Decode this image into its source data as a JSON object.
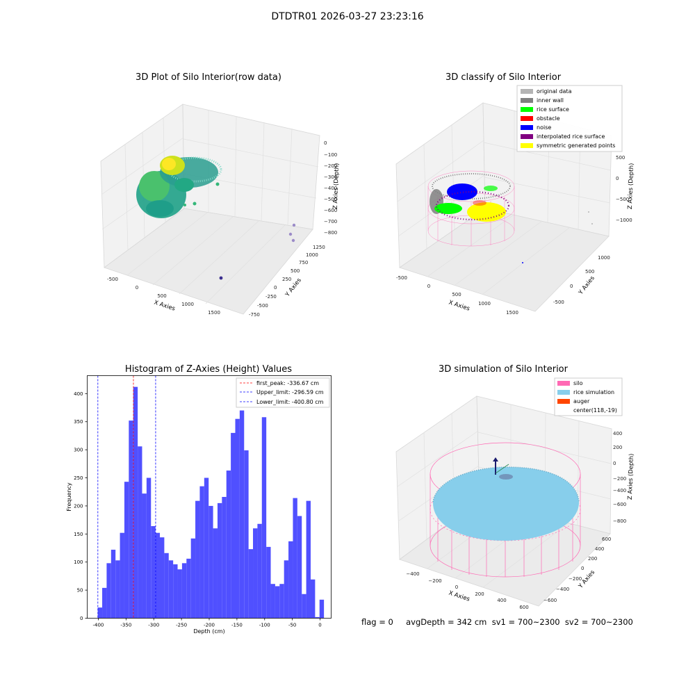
{
  "figure": {
    "title": "DTDTR01 2026-03-27 23:23:16",
    "footer": "flag = 0     avgDepth = 342 cm  sv1 = 700~2300  sv2 = 700~2300"
  },
  "colors": {
    "hist_bar": "#5050ff",
    "first_peak_line": "#ff0000",
    "limit_line": "#0000ff",
    "silo": "#ff69b4",
    "rice_sim": "#87ceeb",
    "auger": "#ff4500",
    "original": "#b4b4b4",
    "inner_wall": "#808080",
    "rice_surface": "#00ff00",
    "obstacle": "#ff0000",
    "noise": "#0000ff",
    "interp": "#800080",
    "symmetric": "#ffff00"
  },
  "panels": {
    "raw": {
      "title": "3D Plot of Silo Interior(row data)",
      "xlabel": "X Axies",
      "ylabel": "Y Axies",
      "zlabel": "Z Axies (Depth)",
      "xticks": [
        "-500",
        "0",
        "500",
        "1000",
        "1500"
      ],
      "yticks": [
        "-750",
        "-500",
        "-250",
        "0",
        "250",
        "500",
        "750",
        "1000",
        "1250"
      ],
      "zticks": [
        "0",
        "−100",
        "−200",
        "−300",
        "−400",
        "−500",
        "−600",
        "−700",
        "−800"
      ]
    },
    "classify": {
      "title": "3D classify of Silo Interior",
      "xlabel": "X Axies",
      "ylabel": "Y Axies",
      "zlabel": "Z Axies (Depth)",
      "xticks": [
        "-500",
        "0",
        "500",
        "1000",
        "1500"
      ],
      "yticks": [
        "-500",
        "0",
        "500",
        "1000"
      ],
      "zticks": [
        "500",
        "0",
        "−500",
        "−1000"
      ],
      "legend": [
        "original data",
        "inner wall",
        "rice surface",
        "obstacle",
        "noise",
        "interpolated rice surface",
        "symmetric generated points"
      ]
    },
    "simulation": {
      "title": "3D simulation of Silo Interior",
      "xlabel": "X Axies",
      "ylabel": "Y Axies",
      "zlabel": "Z Axies (Depth)",
      "xticks": [
        "−400",
        "−200",
        "0",
        "200",
        "400",
        "600"
      ],
      "yticks": [
        "−600",
        "−400",
        "−200",
        "0",
        "200",
        "400",
        "600"
      ],
      "zticks": [
        "400",
        "200",
        "0",
        "−200",
        "−400",
        "−600",
        "−800"
      ],
      "legend": [
        "silo",
        "rice simulation",
        "auger",
        "center(118,-19)"
      ]
    }
  },
  "chart_data": [
    {
      "type": "scatter",
      "title": "3D Plot of Silo Interior(row data)",
      "xlabel": "X Axies",
      "ylabel": "Y Axies",
      "zlabel": "Z Axies (Depth)",
      "xlim": [
        -600,
        1800
      ],
      "ylim": [
        -750,
        1250
      ],
      "zlim": [
        -850,
        0
      ]
    },
    {
      "type": "scatter",
      "title": "3D classify of Silo Interior",
      "xlabel": "X Axies",
      "ylabel": "Y Axies",
      "zlabel": "Z Axies (Depth)",
      "series": [
        {
          "name": "original data"
        },
        {
          "name": "inner wall"
        },
        {
          "name": "rice surface"
        },
        {
          "name": "obstacle"
        },
        {
          "name": "noise"
        },
        {
          "name": "interpolated rice surface"
        },
        {
          "name": "symmetric generated points"
        }
      ],
      "legend_position": "top-right"
    },
    {
      "type": "bar",
      "title": "Histogram of Z-Axies (Height) Values",
      "xlabel": "Depth (cm)",
      "ylabel": "Frequency",
      "xlim": [
        -420,
        20
      ],
      "ylim": [
        0,
        432
      ],
      "xticks": [
        -400,
        -350,
        -300,
        -250,
        -200,
        -150,
        -100,
        -50,
        0
      ],
      "yticks": [
        0,
        50,
        100,
        150,
        200,
        250,
        300,
        350,
        400
      ],
      "bin_start": -401,
      "bin_width": 8.0,
      "values": [
        19,
        54,
        98,
        122,
        103,
        152,
        243,
        352,
        412,
        306,
        222,
        250,
        164,
        152,
        144,
        116,
        103,
        96,
        87,
        98,
        106,
        142,
        209,
        235,
        250,
        200,
        160,
        205,
        216,
        263,
        330,
        355,
        370,
        299,
        123,
        160,
        168,
        358,
        127,
        61,
        57,
        61,
        103,
        137,
        214,
        182,
        43,
        209,
        69,
        2,
        33
      ],
      "vlines": [
        {
          "name": "first_peak",
          "value": -336.67,
          "label": "first_peak: -336.67 cm"
        },
        {
          "name": "Upper_limit",
          "value": -296.59,
          "label": "Upper_limit: -296.59 cm"
        },
        {
          "name": "Lower_limit",
          "value": -400.8,
          "label": "Lower_limit: -400.80 cm"
        }
      ],
      "legend_position": "top-right"
    },
    {
      "type": "scatter",
      "title": "3D simulation of Silo Interior",
      "xlabel": "X Axies",
      "ylabel": "Y Axies",
      "zlabel": "Z Axies (Depth)",
      "series": [
        {
          "name": "silo"
        },
        {
          "name": "rice simulation"
        },
        {
          "name": "auger"
        }
      ],
      "annotations": [
        "center(118,-19)"
      ],
      "legend_position": "top-right"
    }
  ]
}
